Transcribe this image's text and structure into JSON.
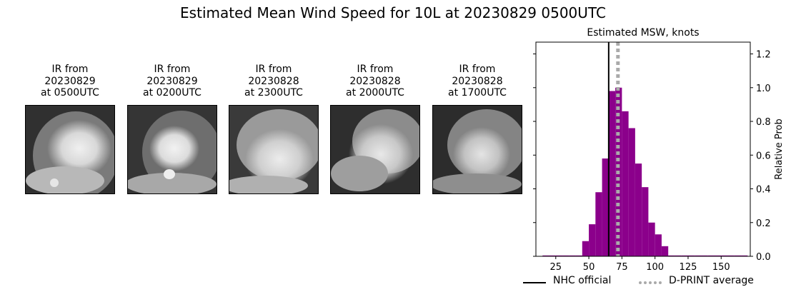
{
  "suptitle": "Estimated Mean Wind Speed for 10L at 20230829 0500UTC",
  "ir_panels": [
    {
      "line1": "IR from",
      "line2": "20230829",
      "line3": "at 0500UTC"
    },
    {
      "line1": "IR from",
      "line2": "20230829",
      "line3": "at 0200UTC"
    },
    {
      "line1": "IR from",
      "line2": "20230828",
      "line3": "at 2300UTC"
    },
    {
      "line1": "IR from",
      "line2": "20230828",
      "line3": "at 2000UTC"
    },
    {
      "line1": "IR from",
      "line2": "20230828",
      "line3": "at 1700UTC"
    }
  ],
  "chart_data": {
    "type": "bar",
    "title": "Estimated MSW, knots",
    "xlabel": "",
    "ylabel": "Relative Prob",
    "xlim": [
      10,
      172
    ],
    "ylim": [
      0,
      1.27
    ],
    "xticks": [
      25,
      50,
      75,
      100,
      125,
      150
    ],
    "yticks": [
      0.0,
      0.2,
      0.4,
      0.6,
      0.8,
      1.0,
      1.2
    ],
    "ytick_labels": [
      "0.0",
      "0.2",
      "0.4",
      "0.6",
      "0.8",
      "1.0",
      "1.2"
    ],
    "bar_color": "#8b008b",
    "bins": [
      {
        "x0": 15,
        "x1": 20,
        "value": 0.005
      },
      {
        "x0": 20,
        "x1": 25,
        "value": 0.005
      },
      {
        "x0": 25,
        "x1": 30,
        "value": 0.005
      },
      {
        "x0": 30,
        "x1": 35,
        "value": 0.005
      },
      {
        "x0": 35,
        "x1": 40,
        "value": 0.005
      },
      {
        "x0": 40,
        "x1": 45,
        "value": 0.005
      },
      {
        "x0": 45,
        "x1": 50,
        "value": 0.09
      },
      {
        "x0": 50,
        "x1": 55,
        "value": 0.19
      },
      {
        "x0": 55,
        "x1": 60,
        "value": 0.38
      },
      {
        "x0": 60,
        "x1": 65,
        "value": 0.58
      },
      {
        "x0": 65,
        "x1": 70,
        "value": 0.98
      },
      {
        "x0": 70,
        "x1": 75,
        "value": 1.0
      },
      {
        "x0": 75,
        "x1": 80,
        "value": 0.86
      },
      {
        "x0": 80,
        "x1": 85,
        "value": 0.76
      },
      {
        "x0": 85,
        "x1": 90,
        "value": 0.55
      },
      {
        "x0": 90,
        "x1": 95,
        "value": 0.41
      },
      {
        "x0": 95,
        "x1": 100,
        "value": 0.2
      },
      {
        "x0": 100,
        "x1": 105,
        "value": 0.13
      },
      {
        "x0": 105,
        "x1": 110,
        "value": 0.06
      },
      {
        "x0": 110,
        "x1": 115,
        "value": 0.005
      },
      {
        "x0": 115,
        "x1": 120,
        "value": 0.005
      },
      {
        "x0": 120,
        "x1": 125,
        "value": 0.005
      },
      {
        "x0": 125,
        "x1": 130,
        "value": 0.005
      },
      {
        "x0": 130,
        "x1": 135,
        "value": 0.005
      },
      {
        "x0": 135,
        "x1": 140,
        "value": 0.005
      },
      {
        "x0": 140,
        "x1": 145,
        "value": 0.005
      },
      {
        "x0": 145,
        "x1": 150,
        "value": 0.005
      },
      {
        "x0": 150,
        "x1": 155,
        "value": 0.005
      },
      {
        "x0": 155,
        "x1": 160,
        "value": 0.005
      },
      {
        "x0": 160,
        "x1": 165,
        "value": 0.005
      },
      {
        "x0": 165,
        "x1": 170,
        "value": 0.005
      }
    ],
    "nhc_official": 65,
    "dprint_average": 72,
    "nhc_color": "#000000",
    "dprint_color": "#aaaaaa",
    "legend": {
      "nhc_label": "NHC official",
      "dprint_label": "D-PRINT average",
      "placement": "bottom"
    }
  }
}
